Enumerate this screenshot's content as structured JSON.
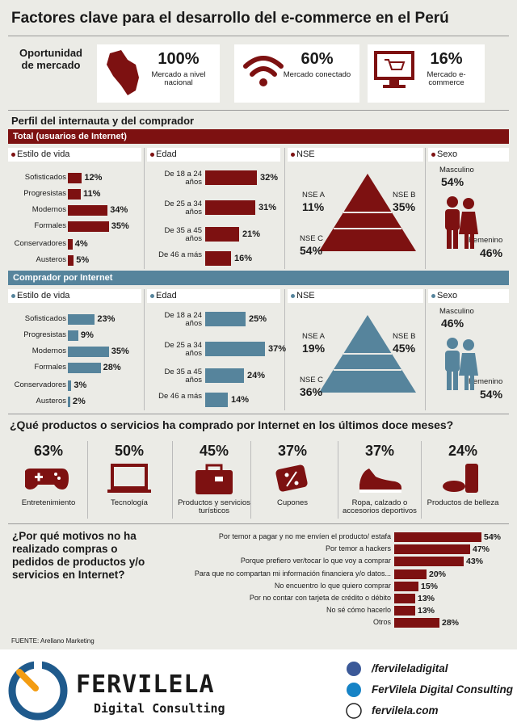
{
  "header": {
    "title": "Factores clave para el desarrollo del e-commerce en el Perú"
  },
  "opportunity": {
    "label": "Oportunidad de mercado",
    "items": [
      {
        "value": "100%",
        "text": "Mercado a nivel nacional"
      },
      {
        "value": "60%",
        "text": "Mercado conectado"
      },
      {
        "value": "16%",
        "text": "Mercado e-commerce"
      }
    ]
  },
  "profile_title": "Perfil del internauta y del comprador",
  "panels": [
    {
      "band": "Total (usuarios de Internet)",
      "color": "#7d1111",
      "lifestyle": {
        "title": "Estilo de vida",
        "categories": [
          "Sofisticados",
          "Progresistas",
          "Modernos",
          "Formales",
          "Conservadores",
          "Austeros"
        ],
        "values": [
          12,
          11,
          34,
          35,
          4,
          5
        ],
        "value_labels": [
          "12%",
          "11%",
          "34%",
          "35%",
          "4%",
          "5%"
        ]
      },
      "age": {
        "title": "Edad",
        "categories": [
          "De 18 a 24 años",
          "De 25 a 34 años",
          "De 35 a 45 años",
          "De 46 a más"
        ],
        "values": [
          32,
          31,
          21,
          16
        ],
        "value_labels": [
          "32%",
          "31%",
          "21%",
          "16%"
        ]
      },
      "nse": {
        "title": "NSE",
        "labels": [
          "NSE A",
          "NSE B",
          "NSE C"
        ],
        "values": [
          "11%",
          "35%",
          "54%"
        ]
      },
      "sex": {
        "title": "Sexo",
        "labels": [
          "Masculino",
          "Femenino"
        ],
        "values": [
          "54%",
          "46%"
        ]
      }
    },
    {
      "band": "Comprador por Internet",
      "color": "#56849c",
      "lifestyle": {
        "title": "Estilo de vida",
        "categories": [
          "Sofisticados",
          "Progresistas",
          "Modernos",
          "Formales",
          "Conservadores",
          "Austeros"
        ],
        "values": [
          23,
          9,
          35,
          28,
          3,
          2
        ],
        "value_labels": [
          "23%",
          "9%",
          "35%",
          "28%",
          "3%",
          "2%"
        ]
      },
      "age": {
        "title": "Edad",
        "categories": [
          "De 18 a 24 años",
          "De 25 a 34 años",
          "De 35 a 45 años",
          "De 46 a más"
        ],
        "values": [
          25,
          37,
          24,
          14
        ],
        "value_labels": [
          "25%",
          "37%",
          "24%",
          "14%"
        ]
      },
      "nse": {
        "title": "NSE",
        "labels": [
          "NSE A",
          "NSE B",
          "NSE C"
        ],
        "values": [
          "19%",
          "45%",
          "36%"
        ]
      },
      "sex": {
        "title": "Sexo",
        "labels": [
          "Masculino",
          "Femenino"
        ],
        "values": [
          "46%",
          "54%"
        ]
      }
    }
  ],
  "products": {
    "question": "¿Qué productos o servicios ha comprado por Internet en los últimos doce meses?",
    "items": [
      {
        "value": "63%",
        "label": "Entretenimiento"
      },
      {
        "value": "50%",
        "label": "Tecnología"
      },
      {
        "value": "45%",
        "label": "Productos y servicios turísticos"
      },
      {
        "value": "37%",
        "label": "Cupones"
      },
      {
        "value": "37%",
        "label": "Ropa, calzado o accesorios deportivos"
      },
      {
        "value": "24%",
        "label": "Productos de belleza"
      }
    ]
  },
  "reasons": {
    "question": "¿Por qué motivos no ha realizado compras o pedidos de productos y/o servicios en Internet?",
    "categories": [
      "Por temor a pagar y no me envíen el producto/ estafa",
      "Por temor a hackers",
      "Porque prefiero ver/tocar lo que voy a comprar",
      "Para que no compartan mi información financiera y/o datos...",
      "No encuentro lo que quiero comprar",
      "Por no contar con tarjeta de crédito o débito",
      "No sé cómo hacerlo",
      "Otros"
    ],
    "values": [
      54,
      47,
      43,
      20,
      15,
      13,
      13,
      28
    ],
    "value_labels": [
      "54%",
      "47%",
      "43%",
      "20%",
      "15%",
      "13%",
      "13%",
      "28%"
    ]
  },
  "source": "FUENTE: Arellano Marketing",
  "footer": {
    "brand": "FERVILELA",
    "tagline": "Digital Consulting",
    "links": [
      "/fervileladigital",
      "FerVilela Digital Consulting",
      "fervilela.com"
    ]
  }
}
